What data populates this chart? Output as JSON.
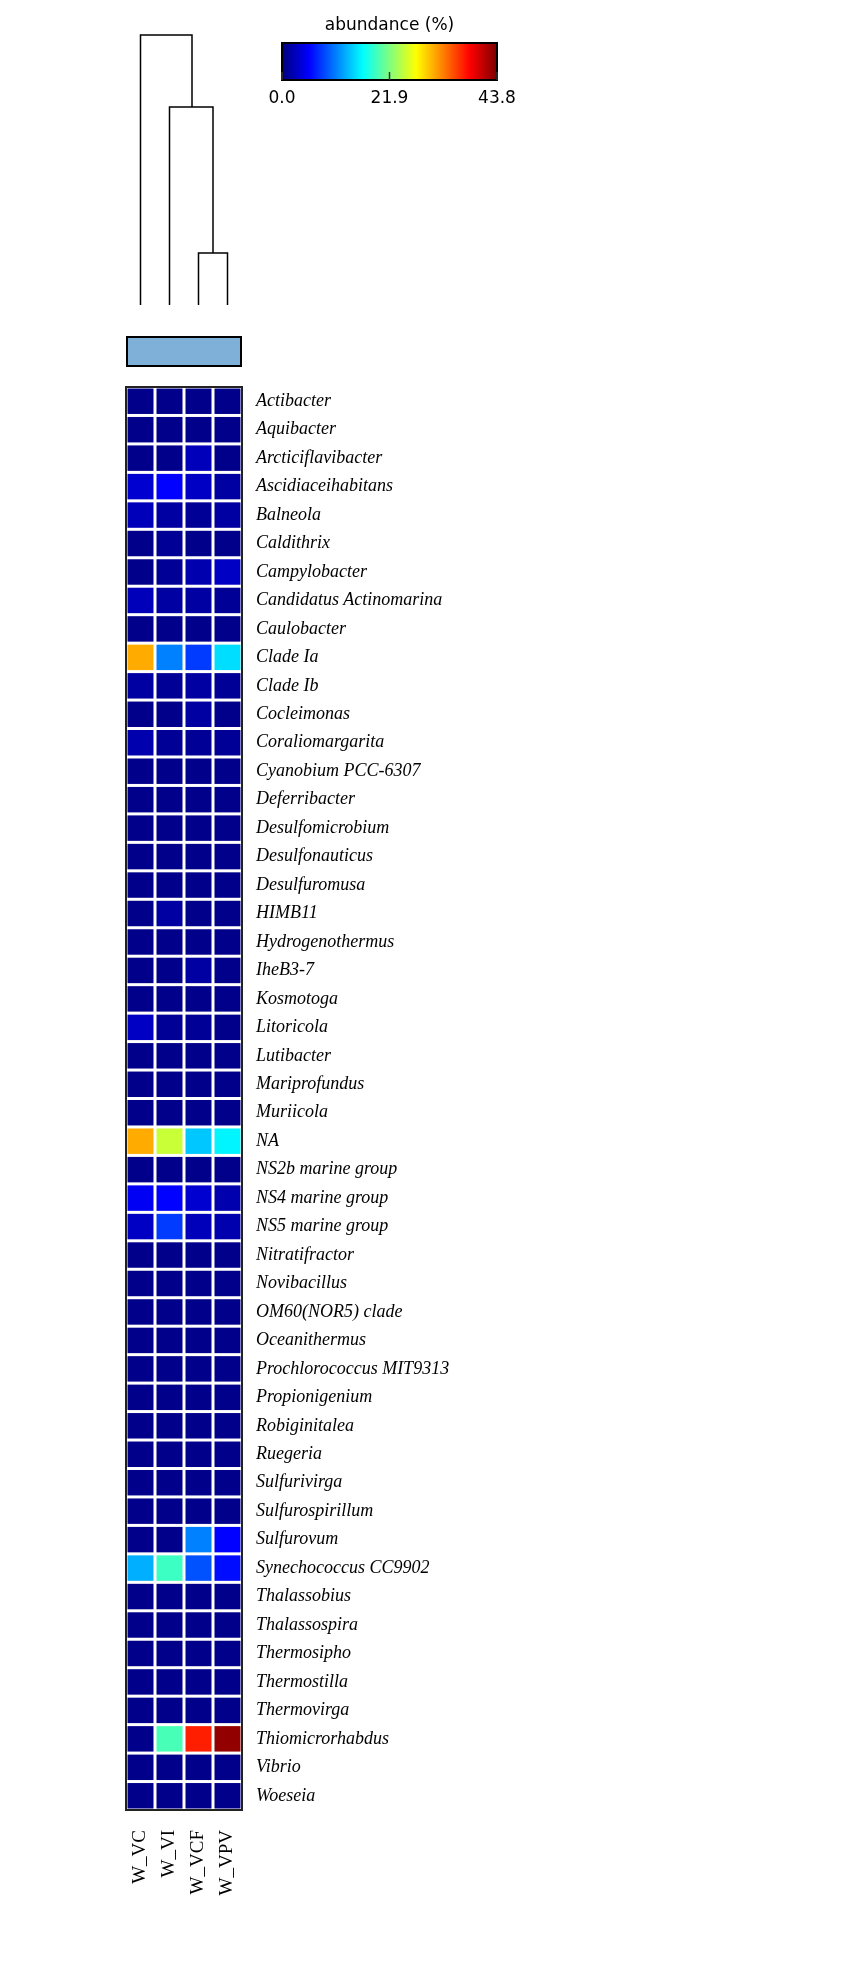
{
  "chart_data": {
    "type": "heatmap",
    "clabel": "abundance (%)",
    "categories": [
      "W_VC",
      "W_VI",
      "W_VCF",
      "W_VPV"
    ],
    "y_categories": [
      "Actibacter",
      "Aquibacter",
      "Arcticiflavibacter",
      "Ascidiaceihabitans",
      "Balneola",
      "Caldithrix",
      "Campylobacter",
      "Candidatus Actinomarina",
      "Caulobacter",
      "Clade Ia",
      "Clade Ib",
      "Cocleimonas",
      "Coraliomargarita",
      "Cyanobium PCC-6307",
      "Deferribacter",
      "Desulfomicrobium",
      "Desulfonauticus",
      "Desulfuromusa",
      "HIMB11",
      "Hydrogenothermus",
      "IheB3-7",
      "Kosmotoga",
      "Litoricola",
      "Lutibacter",
      "Mariprofundus",
      "Muriicola",
      "NA",
      "NS2b marine group",
      "NS4 marine group",
      "NS5 marine group",
      "Nitratifractor",
      "Novibacillus",
      "OM60(NOR5) clade",
      "Oceanithermus",
      "Prochlorococcus MIT9313",
      "Propionigenium",
      "Robiginitalea",
      "Ruegeria",
      "Sulfurivirga",
      "Sulfurospirillum",
      "Sulfurovum",
      "Synechococcus CC9902",
      "Thalassobius",
      "Thalassospira",
      "Thermosipho",
      "Thermostilla",
      "Thermovirga",
      "Thiomicrorhabdus",
      "Vibrio",
      "Woeseia"
    ],
    "cells": [
      [
        0.5,
        0.5,
        0.5,
        0.5
      ],
      [
        0.5,
        0.5,
        0.5,
        0.5
      ],
      [
        0.5,
        0.5,
        2.5,
        0.5
      ],
      [
        3.5,
        5.5,
        3,
        1.5
      ],
      [
        2.5,
        1.5,
        1,
        1.5
      ],
      [
        0.5,
        1,
        0.5,
        0.5
      ],
      [
        0.5,
        1,
        2,
        3
      ],
      [
        2.5,
        1.5,
        1.5,
        1
      ],
      [
        0.5,
        0.5,
        0.5,
        0.5
      ],
      [
        31,
        11,
        8,
        15
      ],
      [
        1.5,
        1,
        1.5,
        1
      ],
      [
        0.5,
        0.5,
        1.5,
        0.5
      ],
      [
        2,
        1,
        1,
        1
      ],
      [
        0.5,
        0.5,
        0.5,
        0.5
      ],
      [
        0.5,
        0.5,
        0.5,
        0.5
      ],
      [
        0.5,
        0.5,
        0.5,
        0.5
      ],
      [
        0.5,
        0.5,
        0.5,
        0.5
      ],
      [
        0.5,
        0.5,
        0.5,
        0.5
      ],
      [
        0.5,
        1.5,
        0.5,
        0.5
      ],
      [
        0.5,
        0.5,
        0.5,
        0.5
      ],
      [
        0.5,
        0.5,
        1.5,
        0.5
      ],
      [
        0.5,
        0.5,
        0.5,
        0.5
      ],
      [
        3,
        1,
        1,
        0.5
      ],
      [
        0.5,
        0.5,
        0.5,
        0.5
      ],
      [
        0.5,
        0.5,
        0.5,
        0.5
      ],
      [
        0.5,
        0.5,
        0.5,
        0.5
      ],
      [
        31,
        25,
        14,
        16
      ],
      [
        0.5,
        0.5,
        0.5,
        0.5
      ],
      [
        5,
        5.5,
        3.5,
        2
      ],
      [
        3,
        8,
        2.5,
        2
      ],
      [
        0.5,
        0.5,
        0.5,
        0.5
      ],
      [
        0.5,
        0.5,
        0.5,
        0.5
      ],
      [
        0.5,
        0.5,
        0.5,
        0.5
      ],
      [
        0.5,
        0.5,
        0.5,
        0.5
      ],
      [
        0.5,
        0.5,
        0.5,
        0.5
      ],
      [
        0.5,
        0.5,
        0.5,
        0.5
      ],
      [
        0.5,
        0.5,
        0.5,
        0.5
      ],
      [
        0.5,
        0.5,
        0.5,
        0.5
      ],
      [
        0.5,
        0.5,
        0.5,
        0.5
      ],
      [
        0.5,
        0.5,
        0.5,
        0.5
      ],
      [
        0.5,
        0.5,
        11,
        5.5
      ],
      [
        13,
        19,
        9,
        6
      ],
      [
        0.5,
        0.5,
        0.5,
        0.5
      ],
      [
        0.5,
        0.5,
        0.5,
        0.5
      ],
      [
        0.5,
        0.5,
        0.5,
        0.5
      ],
      [
        0.5,
        0.5,
        0.5,
        0.5
      ],
      [
        0.5,
        0.5,
        0.5,
        0.5
      ],
      [
        0.5,
        19.5,
        37,
        43
      ],
      [
        0.5,
        0.5,
        0.5,
        0.5
      ],
      [
        0.5,
        0.5,
        0.5,
        0.5
      ]
    ],
    "clim": [
      0,
      43.8
    ],
    "cticks": [
      {
        "value": 0,
        "label": "0.0"
      },
      21.9,
      43.8
    ]
  }
}
